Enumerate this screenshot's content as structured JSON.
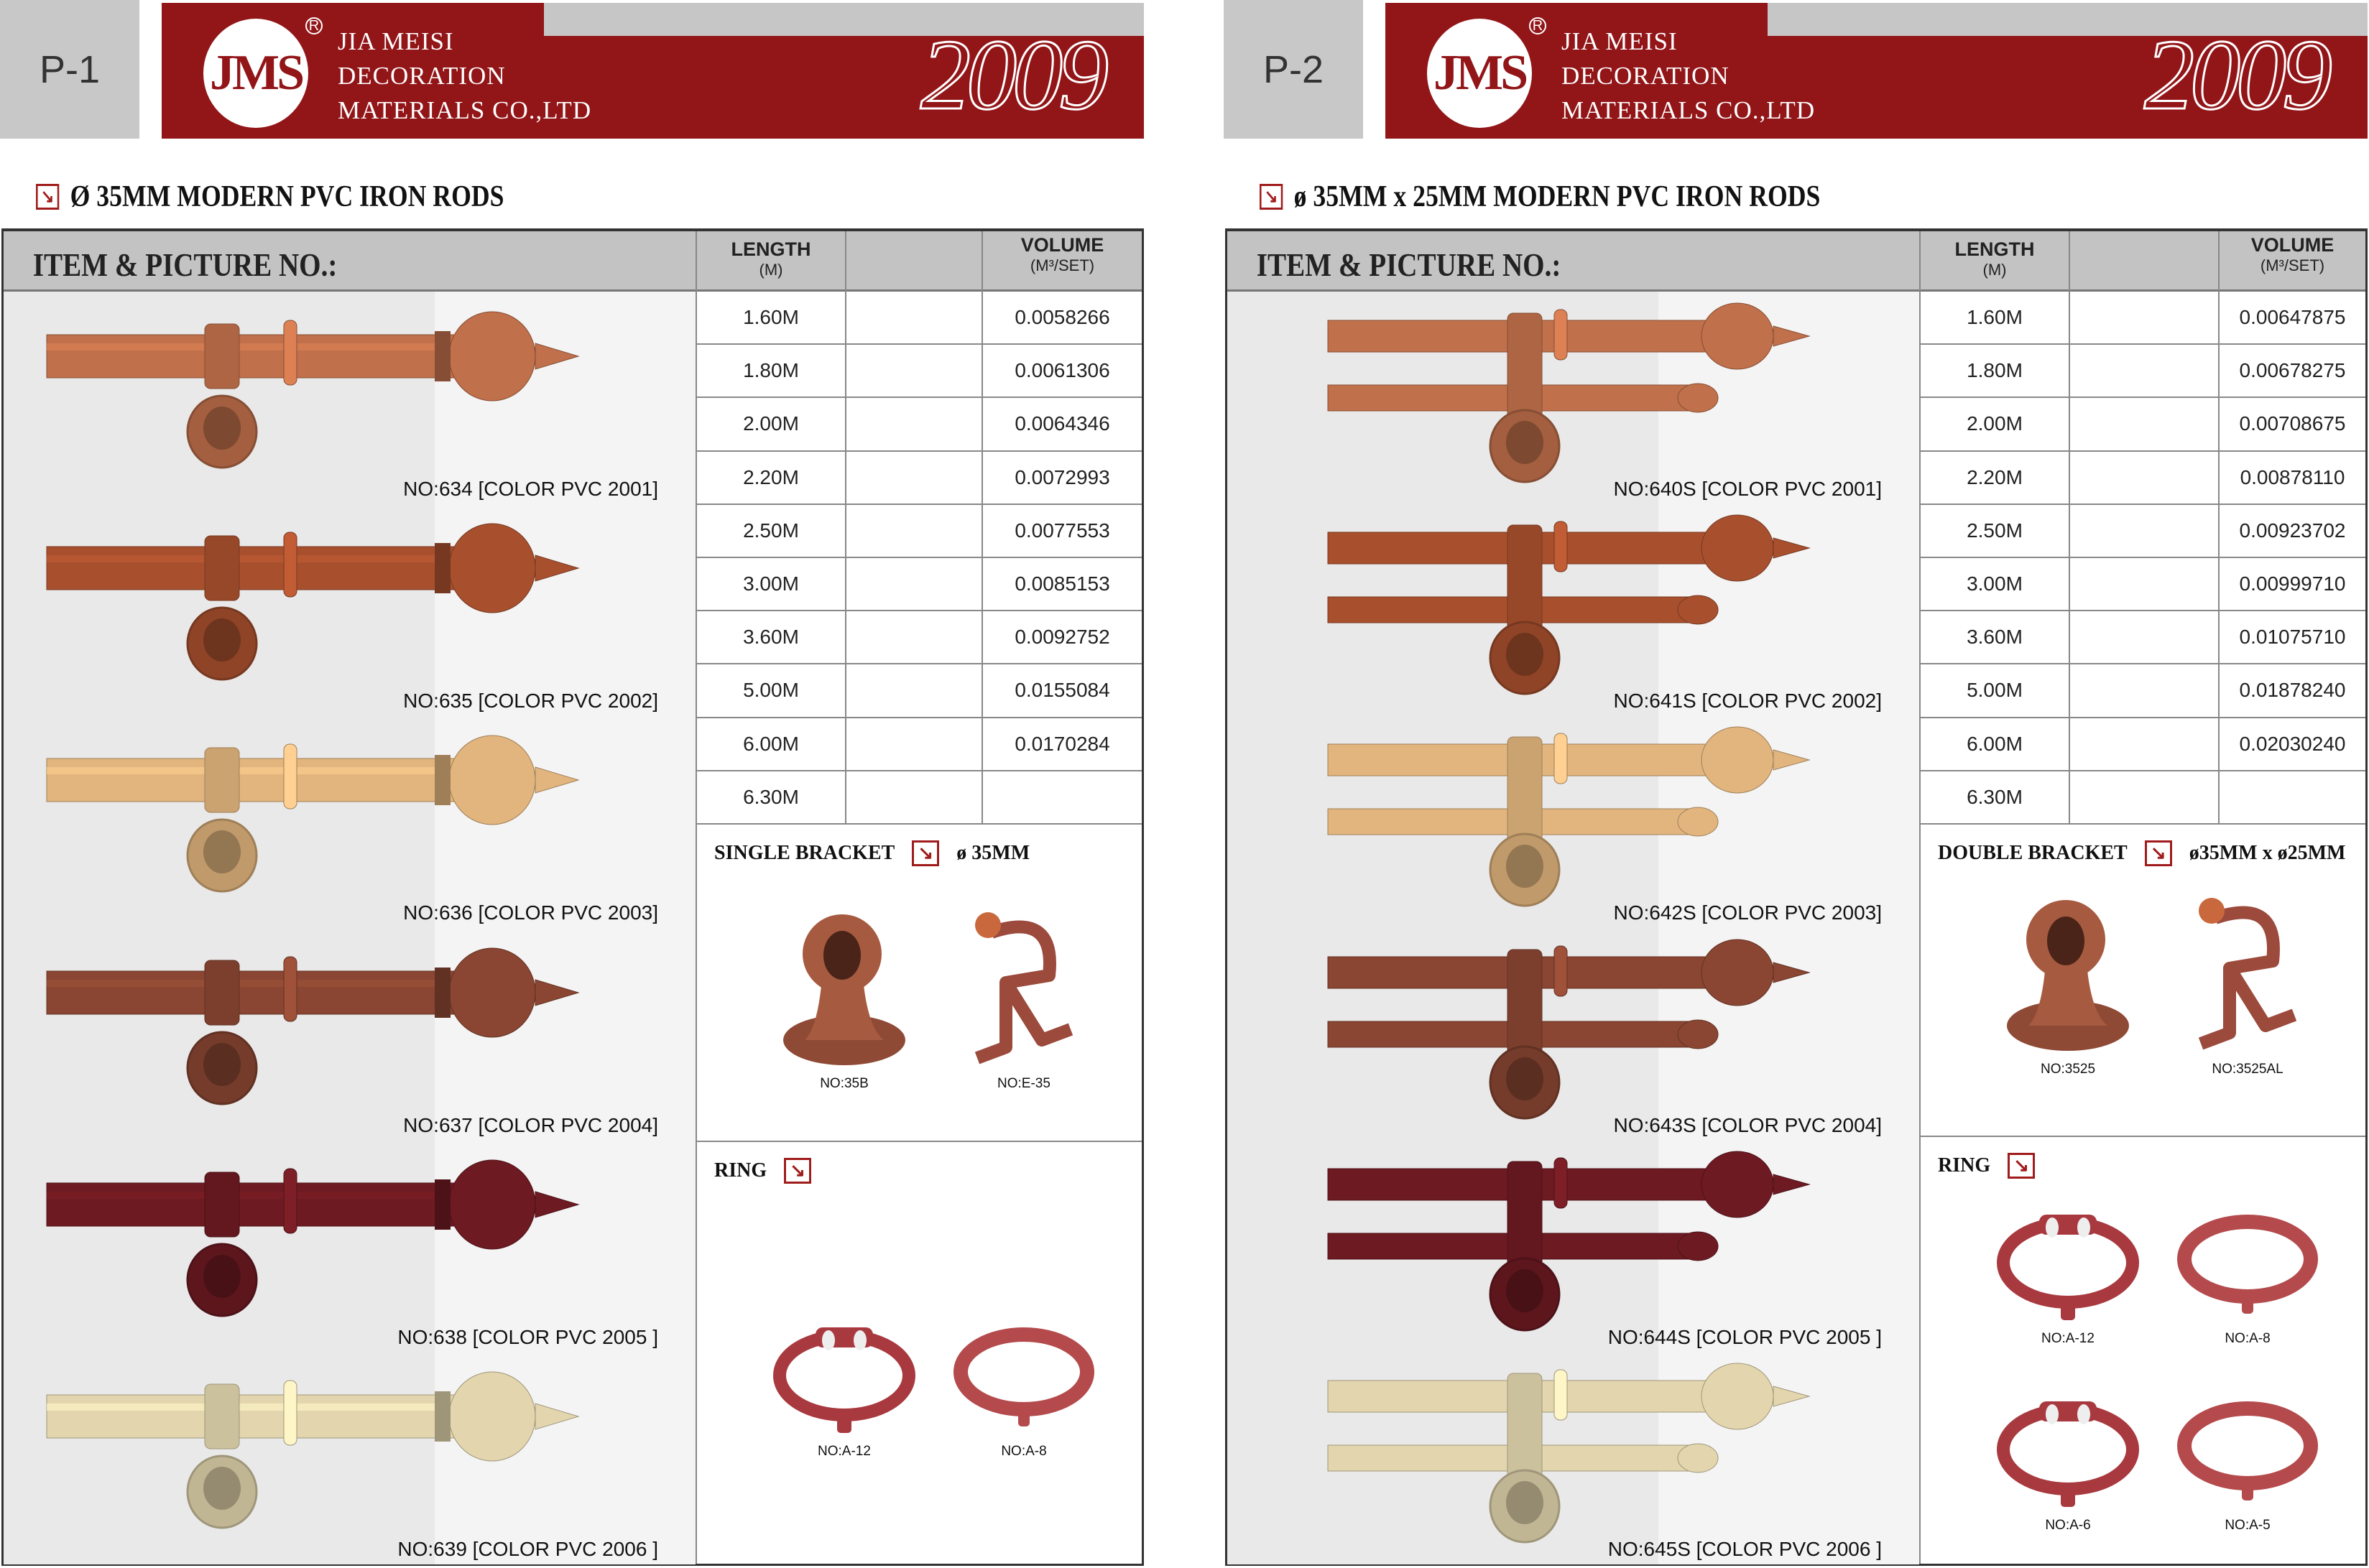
{
  "company": {
    "logo_text": "JMS",
    "lines": [
      "JIA MEISI",
      "DECORATION",
      "MATERIALS CO.,LTD"
    ],
    "year": "2009"
  },
  "colors": {
    "brand_red": "#921518",
    "header_gray": "#c3c3c3"
  },
  "table_headers": {
    "item": "ITEM & PICTURE NO.:",
    "length": "LENGTH",
    "length_unit": "(M)",
    "volume": "VOLUME",
    "volume_unit": "(M³/SET)"
  },
  "pages": [
    {
      "page_label": "P-1",
      "section_title": "Ø 35MM  MODERN  PVC  IRON  RODS",
      "double": false,
      "products": [
        {
          "label": "NO:634 [COLOR PVC 2001]",
          "color": "#c0704a"
        },
        {
          "label": "NO:635 [COLOR PVC 2002]",
          "color": "#a8502e"
        },
        {
          "label": "NO:636 [COLOR PVC 2003]",
          "color": "#e2b57e"
        },
        {
          "label": "NO:637 [COLOR PVC 2004]",
          "color": "#8a4632"
        },
        {
          "label": "NO:638 [COLOR PVC 2005 ]",
          "color": "#6e1a22"
        },
        {
          "label": "NO:639 [COLOR PVC 2006 ]",
          "color": "#e3d6ae"
        }
      ],
      "lengths": [
        "1.60M",
        "1.80M",
        "2.00M",
        "2.20M",
        "2.50M",
        "3.00M",
        "3.60M",
        "5.00M",
        "6.00M",
        "6.30M"
      ],
      "volumes": [
        "0.0058266",
        "0.0061306",
        "0.0064346",
        "0.0072993",
        "0.0077553",
        "0.0085153",
        "0.0092752",
        "0.0155084",
        "0.0170284",
        ""
      ],
      "bracket": {
        "title": "SINGLE BRACKET",
        "size": "ø 35MM",
        "items": [
          {
            "label": "NO:35B",
            "kind": "finial-bracket"
          },
          {
            "label": "NO:E-35",
            "kind": "metal-bracket"
          }
        ]
      },
      "ring": {
        "title": "RING",
        "items": [
          {
            "label": "NO:A-12",
            "kind": "roller-ring"
          },
          {
            "label": "NO:A-8",
            "kind": "plain-ring"
          }
        ]
      }
    },
    {
      "page_label": "P-2",
      "section_title": "ø 35MM x 25MM  MODERN  PVC  IRON  RODS",
      "double": true,
      "products": [
        {
          "label": "NO:640S [COLOR PVC 2001]",
          "color": "#c0704a"
        },
        {
          "label": "NO:641S [COLOR PVC 2002]",
          "color": "#a8502e"
        },
        {
          "label": "NO:642S [COLOR PVC 2003]",
          "color": "#e2b57e"
        },
        {
          "label": "NO:643S [COLOR PVC 2004]",
          "color": "#8a4632"
        },
        {
          "label": "NO:644S [COLOR PVC 2005 ]",
          "color": "#6e1a22"
        },
        {
          "label": "NO:645S [COLOR PVC 2006 ]",
          "color": "#e3d6ae"
        }
      ],
      "lengths": [
        "1.60M",
        "1.80M",
        "2.00M",
        "2.20M",
        "2.50M",
        "3.00M",
        "3.60M",
        "5.00M",
        "6.00M",
        "6.30M"
      ],
      "volumes": [
        "0.00647875",
        "0.00678275",
        "0.00708675",
        "0.00878110",
        "0.00923702",
        "0.00999710",
        "0.01075710",
        "0.01878240",
        "0.02030240",
        ""
      ],
      "bracket": {
        "title": "DOUBLE BRACKET",
        "size": "ø35MM x ø25MM",
        "items": [
          {
            "label": "NO:3525",
            "kind": "finial-bracket"
          },
          {
            "label": "NO:3525AL",
            "kind": "metal-bracket"
          }
        ]
      },
      "ring": {
        "title": "RING",
        "items": [
          {
            "label": "NO:A-12",
            "kind": "roller-ring"
          },
          {
            "label": "NO:A-8",
            "kind": "plain-ring"
          },
          {
            "label": "NO:A-6",
            "kind": "roller-ring"
          },
          {
            "label": "NO:A-5",
            "kind": "plain-ring"
          }
        ]
      }
    }
  ]
}
